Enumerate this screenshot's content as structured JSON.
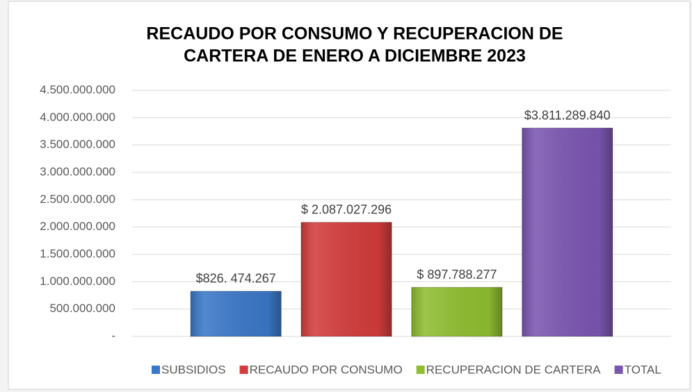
{
  "chart_data": {
    "type": "bar",
    "title": [
      "RECAUDO POR CONSUMO Y RECUPERACION DE",
      "CARTERA DE ENERO A DICIEMBRE 2023"
    ],
    "categories": [
      null
    ],
    "series": [
      {
        "name": "SUBSIDIOS",
        "color": "#3b78c8",
        "values": [
          826474267
        ],
        "value_labels": [
          "$826. 474.267"
        ]
      },
      {
        "name": "RECAUDO POR CONSUMO",
        "color": "#d33c3c",
        "values": [
          2087027296
        ],
        "value_labels": [
          "$ 2.087.027.296"
        ]
      },
      {
        "name": "RECUPERACION DE CARTERA",
        "color": "#8fbe30",
        "values": [
          897788277
        ],
        "value_labels": [
          "$ 897.788.277"
        ]
      },
      {
        "name": "TOTAL",
        "color": "#7b56b1",
        "values": [
          3811289840
        ],
        "value_labels": [
          "$3.811.289.840"
        ]
      }
    ],
    "ylim": [
      0,
      4500000000
    ],
    "yticks": [
      {
        "value": 0,
        "label": "-"
      },
      {
        "value": 500000000,
        "label": "500.000.000"
      },
      {
        "value": 1000000000,
        "label": "1.000.000.000"
      },
      {
        "value": 1500000000,
        "label": "1.500.000.000"
      },
      {
        "value": 2000000000,
        "label": "2.000.000.000"
      },
      {
        "value": 2500000000,
        "label": "2.500.000.000"
      },
      {
        "value": 3000000000,
        "label": "3.000.000.000"
      },
      {
        "value": 3500000000,
        "label": "3.500.000.000"
      },
      {
        "value": 4000000000,
        "label": "4.000.000.000"
      },
      {
        "value": 4500000000,
        "label": "4.500.000.000"
      }
    ],
    "grid": true,
    "legend": "bottom"
  }
}
